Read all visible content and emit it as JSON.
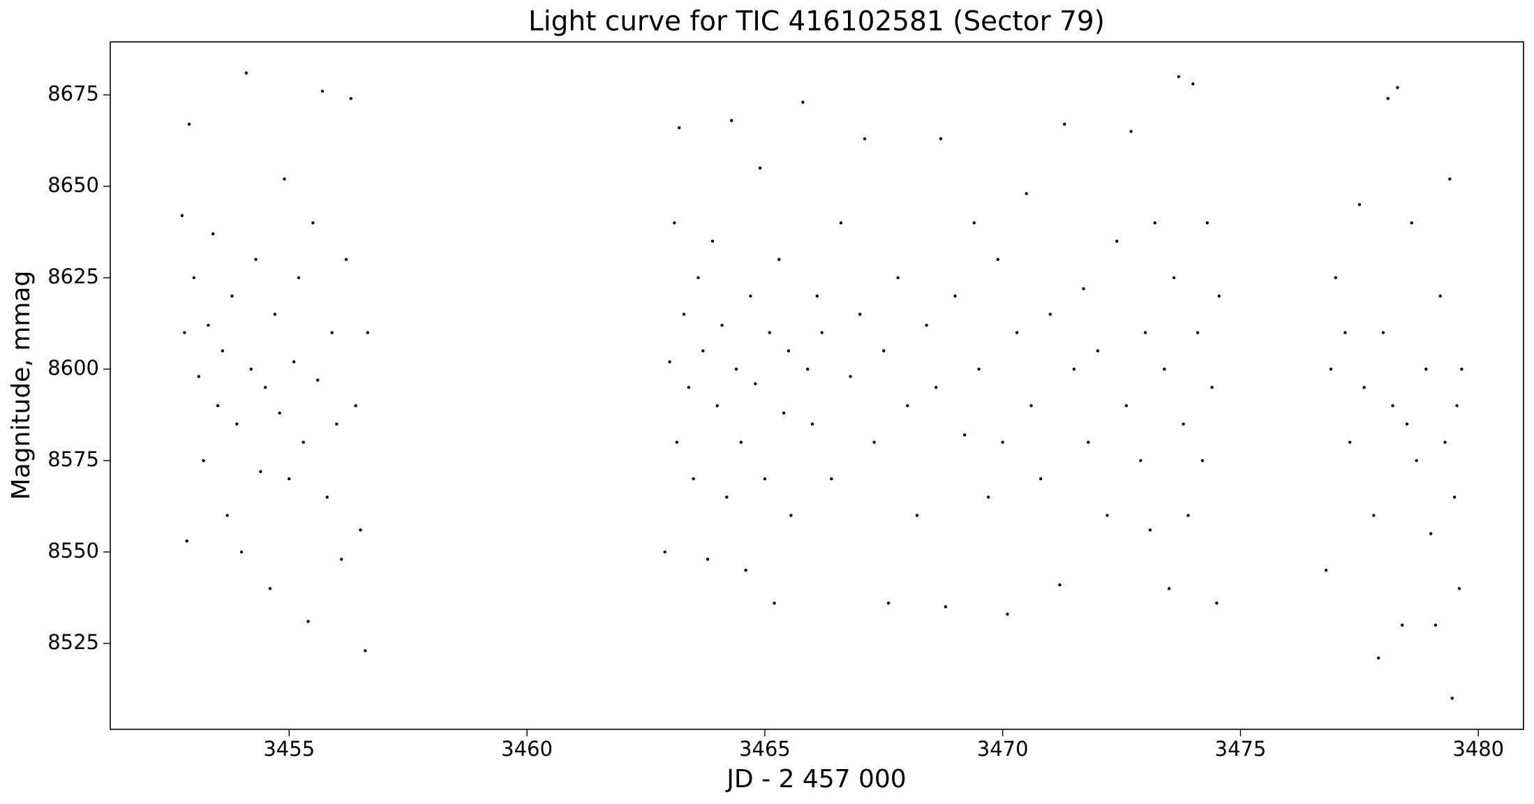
{
  "chart_data": {
    "type": "scatter",
    "title": "Light curve for TIC 416102581 (Sector 79)",
    "x_label": "JD - 2 457 000",
    "y_label": "Magnitude, mmag",
    "color": "#000000",
    "xlim": [
      3451.24,
      3480.95
    ],
    "ylim": [
      8501.5,
      8689.5
    ],
    "xticks": [
      3455,
      3460,
      3465,
      3470,
      3475,
      3480
    ],
    "yticks": [
      8525,
      8550,
      8575,
      8600,
      8625,
      8650,
      8675
    ],
    "x": [
      3452.75,
      3452.8,
      3452.85,
      3452.9,
      3453.0,
      3453.1,
      3453.2,
      3453.3,
      3453.4,
      3453.5,
      3453.6,
      3453.7,
      3453.8,
      3453.9,
      3454.0,
      3454.1,
      3454.2,
      3454.3,
      3454.4,
      3454.5,
      3454.6,
      3454.7,
      3454.8,
      3454.9,
      3455.0,
      3455.1,
      3455.2,
      3455.3,
      3455.4,
      3455.5,
      3455.6,
      3455.7,
      3455.8,
      3455.9,
      3456.0,
      3456.1,
      3456.2,
      3456.3,
      3456.4,
      3456.5,
      3456.6,
      3456.65,
      3462.9,
      3463.0,
      3463.1,
      3463.15,
      3463.2,
      3463.3,
      3463.4,
      3463.5,
      3463.6,
      3463.7,
      3463.8,
      3463.9,
      3464.0,
      3464.1,
      3464.2,
      3464.3,
      3464.4,
      3464.5,
      3464.6,
      3464.7,
      3464.8,
      3464.9,
      3465.0,
      3465.1,
      3465.2,
      3465.3,
      3465.4,
      3465.5,
      3465.55,
      3465.8,
      3465.9,
      3466.0,
      3466.1,
      3466.2,
      3466.4,
      3466.6,
      3466.8,
      3467.0,
      3467.1,
      3467.3,
      3467.5,
      3467.6,
      3467.8,
      3468.0,
      3468.2,
      3468.4,
      3468.6,
      3468.7,
      3468.8,
      3469.0,
      3469.2,
      3469.4,
      3469.5,
      3469.7,
      3469.9,
      3470.0,
      3470.1,
      3470.3,
      3470.5,
      3470.6,
      3470.8,
      3471.0,
      3471.2,
      3471.3,
      3471.5,
      3471.7,
      3471.8,
      3472.0,
      3472.2,
      3472.4,
      3472.6,
      3472.7,
      3472.9,
      3473.0,
      3473.1,
      3473.2,
      3473.4,
      3473.5,
      3473.6,
      3473.7,
      3473.8,
      3473.9,
      3474.0,
      3474.1,
      3474.2,
      3474.3,
      3474.4,
      3474.5,
      3474.55,
      3476.8,
      3476.9,
      3477.0,
      3477.2,
      3477.3,
      3477.5,
      3477.6,
      3477.8,
      3477.9,
      3478.0,
      3478.1,
      3478.2,
      3478.3,
      3478.4,
      3478.5,
      3478.6,
      3478.7,
      3478.9,
      3479.0,
      3479.1,
      3479.2,
      3479.3,
      3479.4,
      3479.45,
      3479.5,
      3479.55,
      3479.6,
      3479.65
    ],
    "values": [
      8642,
      8610,
      8553,
      8667,
      8625,
      8598,
      8575,
      8612,
      8637,
      8590,
      8605,
      8560,
      8620,
      8585,
      8550,
      8681,
      8600,
      8630,
      8572,
      8595,
      8540,
      8615,
      8588,
      8652,
      8570,
      8602,
      8625,
      8580,
      8531,
      8640,
      8597,
      8676,
      8565,
      8610,
      8585,
      8548,
      8630,
      8674,
      8590,
      8556,
      8523,
      8610,
      8550,
      8602,
      8640,
      8580,
      8666,
      8615,
      8595,
      8570,
      8625,
      8605,
      8548,
      8635,
      8590,
      8612,
      8565,
      8668,
      8600,
      8580,
      8545,
      8620,
      8596,
      8655,
      8570,
      8610,
      8536,
      8630,
      8588,
      8605,
      8560,
      8673,
      8600,
      8585,
      8620,
      8610,
      8570,
      8640,
      8598,
      8615,
      8663,
      8580,
      8605,
      8536,
      8625,
      8590,
      8560,
      8612,
      8595,
      8663,
      8535,
      8620,
      8582,
      8640,
      8600,
      8565,
      8630,
      8580,
      8533,
      8610,
      8648,
      8590,
      8570,
      8615,
      8541,
      8667,
      8600,
      8622,
      8580,
      8605,
      8560,
      8635,
      8590,
      8665,
      8575,
      8610,
      8556,
      8640,
      8600,
      8540,
      8625,
      8680,
      8585,
      8560,
      8678,
      8610,
      8575,
      8640,
      8595,
      8536,
      8620,
      8545,
      8600,
      8625,
      8610,
      8580,
      8645,
      8595,
      8560,
      8521,
      8610,
      8674,
      8590,
      8677,
      8530,
      8585,
      8640,
      8575,
      8600,
      8555,
      8530,
      8620,
      8580,
      8652,
      8510,
      8565,
      8590,
      8540,
      8600
    ]
  }
}
